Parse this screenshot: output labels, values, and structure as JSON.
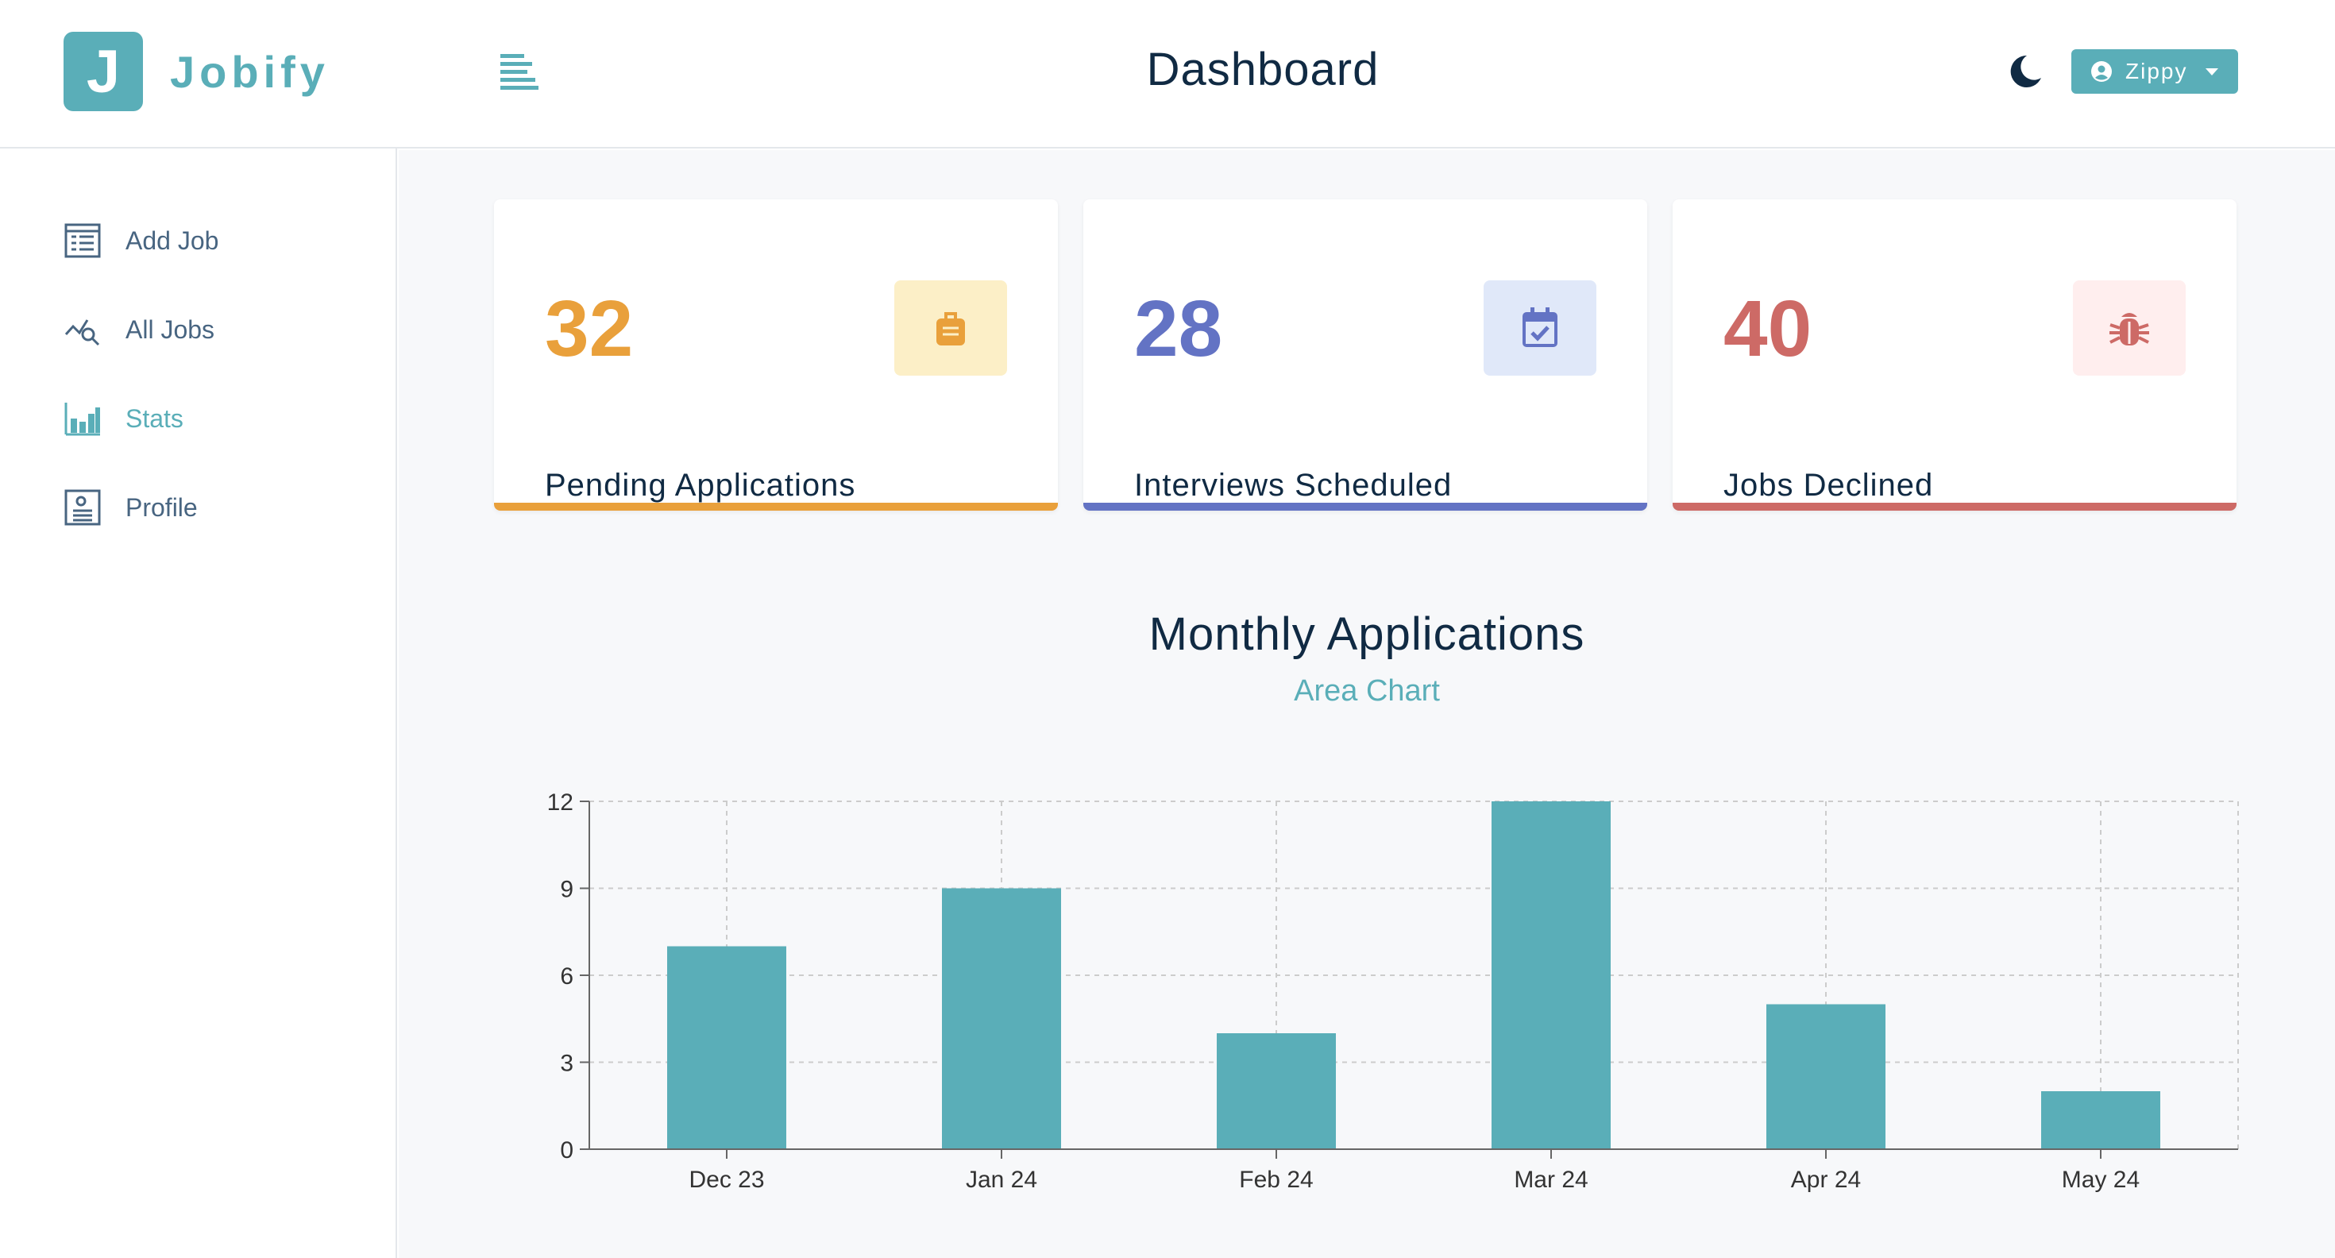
{
  "brand": {
    "initial": "J",
    "name": "Jobify"
  },
  "header": {
    "title": "Dashboard",
    "user_name": "Zippy"
  },
  "colors": {
    "accent": "#5aaeb8",
    "pending": "#e9a03b",
    "interview": "#6373c4",
    "declined": "#cd6a66"
  },
  "sidebar": {
    "items": [
      {
        "label": "Add Job",
        "icon": "add-job-icon"
      },
      {
        "label": "All Jobs",
        "icon": "all-jobs-icon"
      },
      {
        "label": "Stats",
        "icon": "stats-icon",
        "active": true
      },
      {
        "label": "Profile",
        "icon": "profile-icon"
      }
    ]
  },
  "stats": [
    {
      "value": "32",
      "label": "Pending Applications",
      "icon": "suitcase-icon",
      "color": "#e9a03b",
      "bg": "#fcefc7"
    },
    {
      "value": "28",
      "label": "Interviews Scheduled",
      "icon": "calendar-check-icon",
      "color": "#6373c4",
      "bg": "#e0e8f9"
    },
    {
      "value": "40",
      "label": "Jobs Declined",
      "icon": "bug-icon",
      "color": "#cd6a66",
      "bg": "#ffeeee"
    }
  ],
  "chart_section": {
    "title": "Monthly Applications",
    "toggle_label": "Area Chart"
  },
  "chart_data": {
    "type": "bar",
    "categories": [
      "Dec 23",
      "Jan 24",
      "Feb 24",
      "Mar 24",
      "Apr 24",
      "May 24"
    ],
    "values": [
      7,
      9,
      4,
      12,
      5,
      2
    ],
    "yticks": [
      0,
      3,
      6,
      9,
      12
    ],
    "ylim": [
      0,
      12
    ],
    "grid": true,
    "bar_color": "#5aaeb8"
  }
}
